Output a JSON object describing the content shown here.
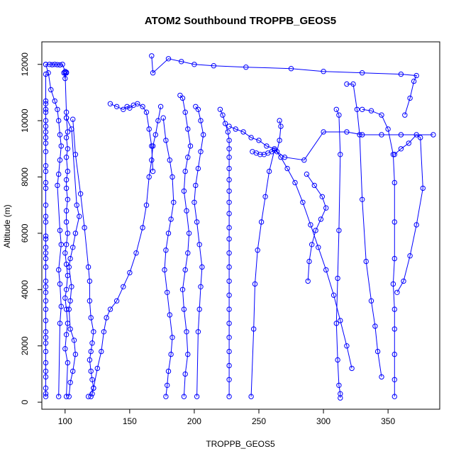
{
  "chart_data": {
    "type": "line",
    "title": "ATOM2 Southbound TROPPB_GEOS5",
    "xlabel": "TROPPB_GEOS5",
    "ylabel": "Altitude (m)",
    "xlim": [
      82,
      390
    ],
    "ylim": [
      -250,
      12800
    ],
    "xticks": [
      100,
      150,
      200,
      250,
      300,
      350
    ],
    "yticks": [
      0,
      2000,
      4000,
      6000,
      8000,
      10000,
      12000
    ],
    "colors": {
      "series": "#0000ff",
      "axes": "#000000",
      "background": "#ffffff"
    },
    "grid": false,
    "markers": "open-circle",
    "series": [
      {
        "x": [
          85,
          88,
          90,
          92,
          94,
          96,
          98,
          100,
          101,
          101,
          100,
          99
        ],
        "y": [
          12000,
          12000,
          11990,
          12000,
          11990,
          11980,
          12000,
          11750,
          11720,
          11700,
          11500,
          11700
        ]
      },
      {
        "x": [
          85,
          85,
          85,
          85,
          85,
          85,
          85,
          85,
          85,
          85,
          85,
          85,
          85,
          85,
          85,
          85,
          85,
          85,
          85,
          85,
          85,
          85,
          85,
          85,
          85,
          85,
          85,
          85,
          85,
          85,
          85,
          85,
          85,
          85,
          85,
          85,
          85,
          85,
          85,
          85
        ],
        "y": [
          11650,
          10700,
          10600,
          10400,
          10300,
          10000,
          9800,
          9600,
          9400,
          9200,
          8900,
          8400,
          8200,
          7800,
          7600,
          7000,
          6600,
          6400,
          5900,
          5800,
          5500,
          5300,
          5100,
          4800,
          4300,
          4100,
          3900,
          3600,
          3300,
          2900,
          2500,
          2300,
          2100,
          1800,
          1400,
          1100,
          900,
          500,
          300,
          200
        ]
      },
      {
        "x": [
          85,
          87,
          89,
          92,
          94,
          95,
          96,
          97,
          96,
          95,
          94,
          96,
          97,
          95,
          96,
          97,
          96,
          95
        ],
        "y": [
          12000,
          11700,
          11100,
          10700,
          10400,
          10000,
          9500,
          9100,
          8600,
          8100,
          7700,
          6100,
          5600,
          4700,
          4200,
          3400,
          2800,
          200
        ]
      },
      {
        "x": [
          100,
          101,
          101,
          102,
          101,
          102,
          101,
          102,
          101,
          101,
          102,
          101,
          101,
          102,
          101,
          100,
          101,
          102,
          101,
          100,
          101,
          102,
          101,
          100,
          102,
          101
        ],
        "y": [
          11700,
          10300,
          10100,
          9600,
          9400,
          9000,
          8700,
          8200,
          7900,
          7600,
          7200,
          6800,
          6400,
          6000,
          5600,
          5300,
          4900,
          4500,
          4000,
          3700,
          3300,
          2800,
          2400,
          1900,
          1400,
          200
        ]
      },
      {
        "x": [
          101,
          105,
          109,
          111,
          108,
          106,
          104,
          103,
          105,
          104,
          103,
          104,
          107,
          108,
          106,
          104,
          103
        ],
        "y": [
          10100,
          9700,
          7000,
          6600,
          6000,
          5500,
          5100,
          4800,
          4100,
          3600,
          3300,
          2600,
          2200,
          1700,
          1100,
          700,
          200
        ]
      },
      {
        "x": [
          106,
          108,
          112,
          115,
          118,
          119,
          119,
          120,
          122,
          121,
          120,
          119,
          120,
          121,
          122,
          121,
          120
        ],
        "y": [
          10050,
          8800,
          7400,
          6200,
          4800,
          4300,
          3600,
          3000,
          2500,
          2100,
          1800,
          1500,
          1100,
          800,
          500,
          300,
          200
        ]
      },
      {
        "x": [
          118,
          122,
          125,
          128,
          130,
          132,
          135,
          140,
          145,
          150,
          155,
          160,
          163,
          165,
          167,
          168,
          170,
          172,
          174
        ],
        "y": [
          200,
          500,
          1200,
          1800,
          2500,
          3000,
          3300,
          3600,
          4100,
          4600,
          5300,
          6200,
          7000,
          8000,
          8600,
          9100,
          9500,
          10000,
          10500
        ]
      },
      {
        "x": [
          135,
          140,
          145,
          148,
          150,
          153,
          156,
          160,
          163,
          165,
          167,
          168
        ],
        "y": [
          10600,
          10500,
          10400,
          10500,
          10450,
          10550,
          10600,
          10500,
          10300,
          9700,
          9100,
          8200
        ]
      },
      {
        "x": [
          167,
          168,
          180,
          190,
          200,
          215,
          240,
          275,
          300,
          330,
          360,
          372,
          370,
          367,
          363
        ],
        "y": [
          12300,
          11700,
          12200,
          12100,
          12000,
          11950,
          11900,
          11850,
          11750,
          11700,
          11650,
          11600,
          11400,
          10800,
          10200
        ]
      },
      {
        "x": [
          176,
          178,
          181,
          183,
          184,
          182,
          180,
          178,
          177,
          179,
          181,
          183,
          182,
          180,
          179,
          178
        ],
        "y": [
          10100,
          9300,
          8600,
          8000,
          7100,
          6500,
          6000,
          5400,
          4700,
          3900,
          3100,
          2300,
          1700,
          1100,
          600,
          200
        ]
      },
      {
        "x": [
          189,
          191,
          193,
          195,
          197,
          195,
          193,
          192,
          194,
          196,
          195,
          193,
          191,
          192,
          194,
          195,
          193,
          192
        ],
        "y": [
          10900,
          10800,
          10300,
          9700,
          9100,
          8700,
          8200,
          7500,
          6800,
          6000,
          5300,
          4700,
          4000,
          3300,
          2500,
          1700,
          1000,
          200
        ]
      },
      {
        "x": [
          201,
          203,
          205,
          207,
          205,
          203,
          201,
          200,
          202,
          204,
          206,
          205,
          204,
          203,
          202
        ],
        "y": [
          10500,
          10400,
          10000,
          9500,
          8900,
          8300,
          7700,
          7100,
          6400,
          5600,
          4800,
          4100,
          3300,
          2500,
          200
        ]
      },
      {
        "x": [
          220,
          222,
          224,
          226,
          227,
          227,
          227,
          227,
          227,
          227,
          227,
          227,
          227,
          227,
          227,
          227,
          227,
          227,
          227,
          227,
          227,
          227,
          227,
          227,
          227
        ],
        "y": [
          10400,
          10200,
          9900,
          9600,
          9300,
          9000,
          8700,
          8300,
          7900,
          7500,
          7100,
          6700,
          6200,
          5800,
          5300,
          4800,
          4300,
          3800,
          3300,
          2800,
          2300,
          1800,
          1300,
          800,
          200
        ]
      },
      {
        "x": [
          227,
          232,
          238,
          244,
          250,
          256,
          262,
          267,
          272,
          278,
          284,
          290,
          296,
          302,
          308,
          313,
          318,
          322
        ],
        "y": [
          9800,
          9700,
          9600,
          9400,
          9300,
          9100,
          9000,
          8700,
          8300,
          7800,
          7100,
          6300,
          5500,
          4700,
          3800,
          2900,
          2000,
          1200
        ]
      },
      {
        "x": [
          245,
          248,
          251,
          254,
          257,
          260,
          262,
          258,
          255,
          252,
          249,
          247,
          246,
          244
        ],
        "y": [
          8900,
          8850,
          8800,
          8800,
          8850,
          8900,
          8950,
          8200,
          7300,
          6400,
          5400,
          4200,
          2600,
          200
        ]
      },
      {
        "x": [
          266,
          267,
          266,
          264,
          270,
          285,
          300,
          318,
          330,
          345,
          360,
          385
        ],
        "y": [
          10000,
          9800,
          9300,
          8900,
          8700,
          8600,
          9600,
          9600,
          9500,
          9500,
          9500,
          9500
        ]
      },
      {
        "x": [
          287,
          293,
          299,
          302,
          298,
          294,
          291,
          289,
          288
        ],
        "y": [
          8100,
          7700,
          7300,
          6900,
          6500,
          6100,
          5600,
          5000,
          4300
        ]
      },
      {
        "x": [
          310,
          312,
          313,
          312,
          311,
          310,
          311,
          312,
          313,
          313
        ],
        "y": [
          10400,
          10200,
          8800,
          6100,
          4400,
          2800,
          1500,
          600,
          300,
          150
        ]
      },
      {
        "x": [
          318,
          323,
          326,
          328,
          330,
          333,
          337,
          340,
          342,
          345
        ],
        "y": [
          11300,
          11300,
          10400,
          9500,
          7200,
          5000,
          3600,
          2700,
          1800,
          900
        ]
      },
      {
        "x": [
          330,
          337,
          345,
          350,
          354,
          355,
          355,
          355,
          354,
          355,
          355,
          355,
          355,
          355
        ],
        "y": [
          10400,
          10350,
          10200,
          9700,
          8800,
          7800,
          6400,
          5100,
          4200,
          3300,
          2600,
          1700,
          800,
          200
        ]
      },
      {
        "x": [
          355,
          360,
          366,
          372,
          375,
          377,
          372,
          367,
          362,
          357
        ],
        "y": [
          8800,
          9000,
          9200,
          9500,
          9400,
          7600,
          6300,
          5200,
          4300,
          3900
        ]
      }
    ]
  }
}
